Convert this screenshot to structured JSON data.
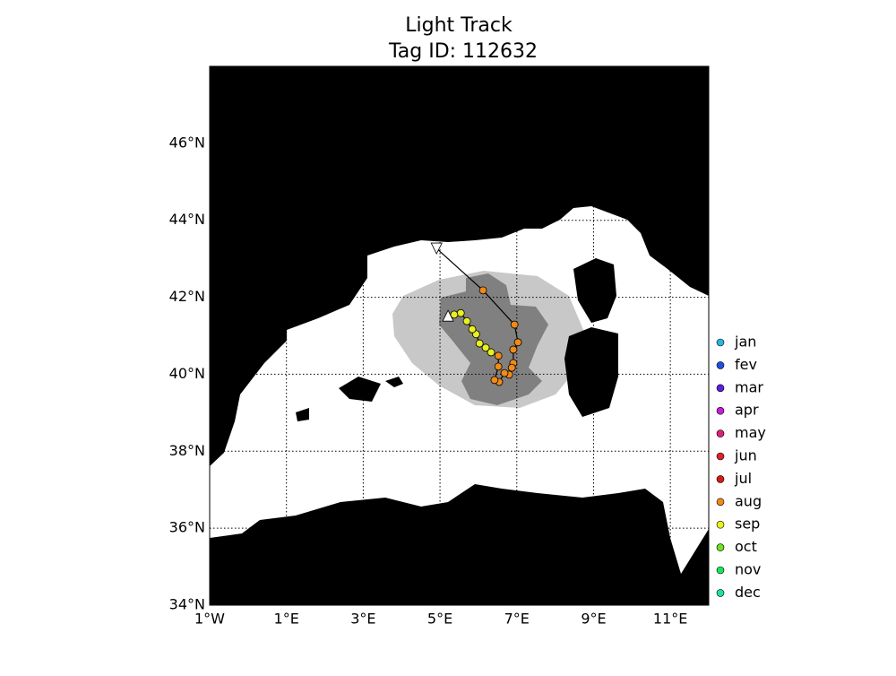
{
  "chart_data": {
    "type": "map",
    "title": "Light Track",
    "subtitle": "Tag ID: 112632",
    "xlim": [
      -1,
      12
    ],
    "ylim": [
      34,
      48
    ],
    "xticks": [
      {
        "value": -1,
        "label": "1°W"
      },
      {
        "value": 1,
        "label": "1°E"
      },
      {
        "value": 3,
        "label": "3°E"
      },
      {
        "value": 5,
        "label": "5°E"
      },
      {
        "value": 7,
        "label": "7°E"
      },
      {
        "value": 9,
        "label": "9°E"
      },
      {
        "value": 11,
        "label": "11°E"
      }
    ],
    "yticks": [
      {
        "value": 34,
        "label": "34°N"
      },
      {
        "value": 36,
        "label": "36°N"
      },
      {
        "value": 38,
        "label": "38°N"
      },
      {
        "value": 40,
        "label": "40°N"
      },
      {
        "value": 42,
        "label": "42°N"
      },
      {
        "value": 44,
        "label": "44°N"
      },
      {
        "value": 46,
        "label": "46°N"
      }
    ],
    "grid": true,
    "start": {
      "lon": 4.91,
      "lat": 43.27
    },
    "end": {
      "lon": 5.21,
      "lat": 41.52
    },
    "track": {
      "lon": [
        6.12,
        6.94,
        7.03,
        6.91,
        6.91,
        6.87,
        6.8,
        6.68,
        6.54,
        6.42,
        6.52,
        6.52,
        6.33,
        6.19,
        6.03,
        5.94,
        5.84,
        5.7,
        5.54,
        5.37
      ],
      "lat": [
        42.18,
        41.29,
        40.83,
        40.64,
        40.29,
        40.17,
        39.99,
        40.03,
        39.8,
        39.85,
        40.2,
        40.48,
        40.57,
        40.69,
        40.8,
        41.04,
        41.17,
        41.38,
        41.59,
        41.55
      ],
      "month": [
        "aug",
        "aug",
        "aug",
        "aug",
        "aug",
        "aug",
        "aug",
        "aug",
        "aug",
        "aug",
        "aug",
        "aug",
        "sep",
        "sep",
        "sep",
        "sep",
        "sep",
        "sep",
        "sep",
        "sep"
      ]
    },
    "series": [
      {
        "name": "jan",
        "color": "#29b6d8"
      },
      {
        "name": "fev",
        "color": "#1f4fe0"
      },
      {
        "name": "mar",
        "color": "#5a1fe0"
      },
      {
        "name": "apr",
        "color": "#c21fd8"
      },
      {
        "name": "may",
        "color": "#e0207a"
      },
      {
        "name": "jun",
        "color": "#e0202a"
      },
      {
        "name": "jul",
        "color": "#d81a10"
      },
      {
        "name": "aug",
        "color": "#f08a18"
      },
      {
        "name": "sep",
        "color": "#e8f020"
      },
      {
        "name": "oct",
        "color": "#70e020"
      },
      {
        "name": "nov",
        "color": "#20e060"
      },
      {
        "name": "dec",
        "color": "#20e0a8"
      }
    ]
  }
}
